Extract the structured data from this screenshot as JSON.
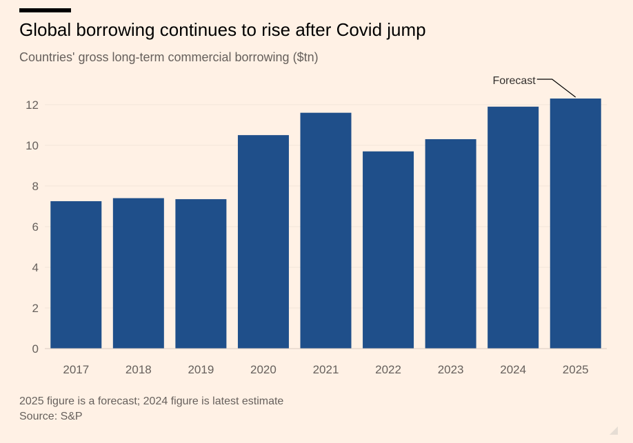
{
  "header": {
    "title": "Global borrowing continues to rise after Covid jump",
    "subtitle": "Countries' gross long-term commercial borrowing ($tn)"
  },
  "footer": {
    "note": "2025 figure is a forecast; 2024 figure is latest estimate",
    "source": "Source: S&P"
  },
  "colors": {
    "background": "#FFF1E5",
    "bar": "#1F4F8A",
    "gridline": "#F2E5D9",
    "text_muted": "#66605C"
  },
  "chart_data": {
    "type": "bar",
    "title": "Global borrowing continues to rise after Covid jump",
    "subtitle": "Countries' gross long-term commercial borrowing ($tn)",
    "categories": [
      "2017",
      "2018",
      "2019",
      "2020",
      "2021",
      "2022",
      "2023",
      "2024",
      "2025"
    ],
    "values": [
      7.25,
      7.4,
      7.35,
      10.5,
      11.6,
      9.7,
      10.3,
      11.9,
      12.3
    ],
    "ylim": [
      0,
      12.3
    ],
    "yticks": [
      0,
      2,
      4,
      6,
      8,
      10,
      12
    ],
    "grid": true,
    "annotations": [
      {
        "text": "Forecast",
        "category": "2025"
      }
    ]
  }
}
